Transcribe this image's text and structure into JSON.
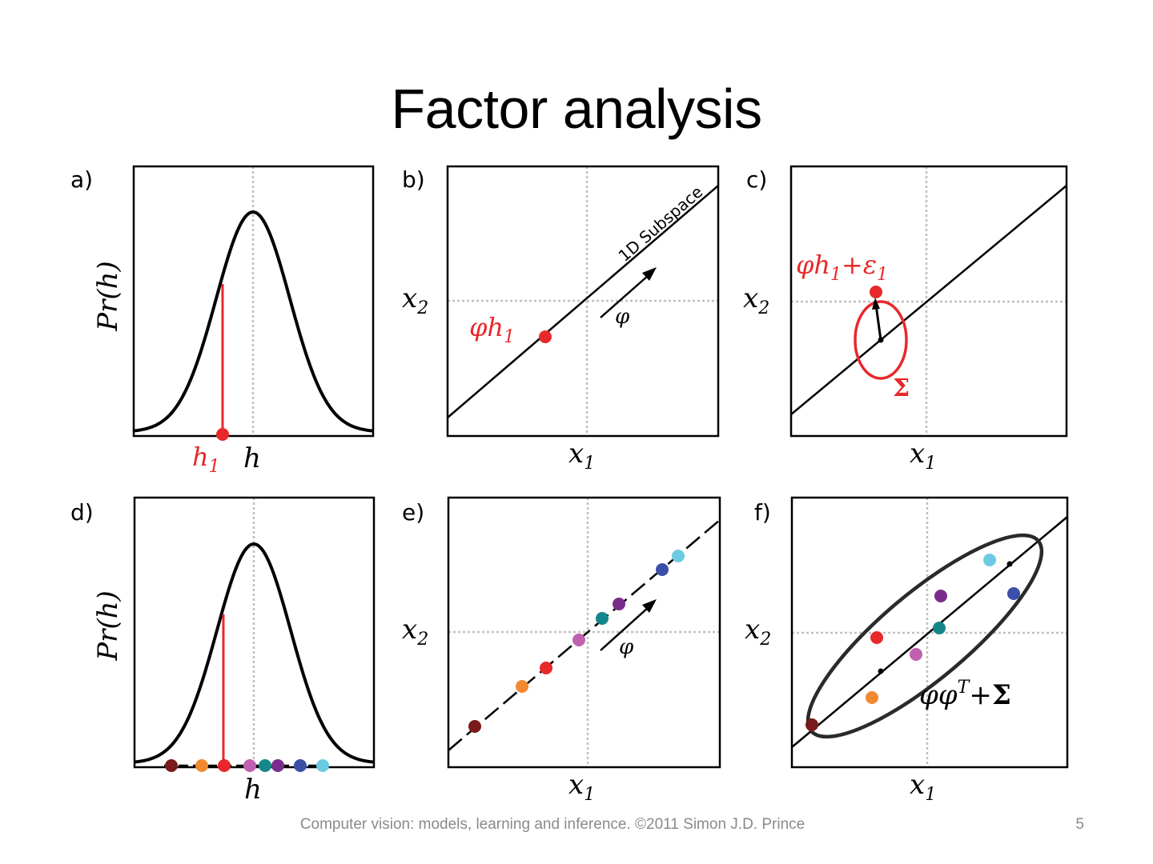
{
  "slide": {
    "title": "Factor analysis",
    "footer": "Computer vision: models, learning and inference.  ©2011 Simon J.D. Prince",
    "page_number": "5"
  },
  "panels": {
    "a": {
      "label": "a)",
      "ylabel": "Pr(h)",
      "xlabel": "h",
      "marker": "h1"
    },
    "b": {
      "label": "b)",
      "xlabel": "x1",
      "ylabel": "x2",
      "subspace_label": "1D Subspace",
      "direction": "φ",
      "point_label": "φh1"
    },
    "c": {
      "label": "c)",
      "xlabel": "x1",
      "ylabel": "x2",
      "point_label": "φh1+ε1",
      "cov_label": "Σ"
    },
    "d": {
      "label": "d)",
      "ylabel": "Pr(h)",
      "xlabel": "h"
    },
    "e": {
      "label": "e)",
      "xlabel": "x1",
      "ylabel": "x2",
      "direction": "φ"
    },
    "f": {
      "label": "f)",
      "xlabel": "x1",
      "ylabel": "x2",
      "cov_label": "φφT+Σ"
    }
  },
  "colors": {
    "red": "#e8282b",
    "sample_colors": [
      "#7b1a1a",
      "#f08a30",
      "#e8282b",
      "#c060b0",
      "#15878a",
      "#7a2c8c",
      "#3a50a8",
      "#6ccbe0"
    ]
  }
}
